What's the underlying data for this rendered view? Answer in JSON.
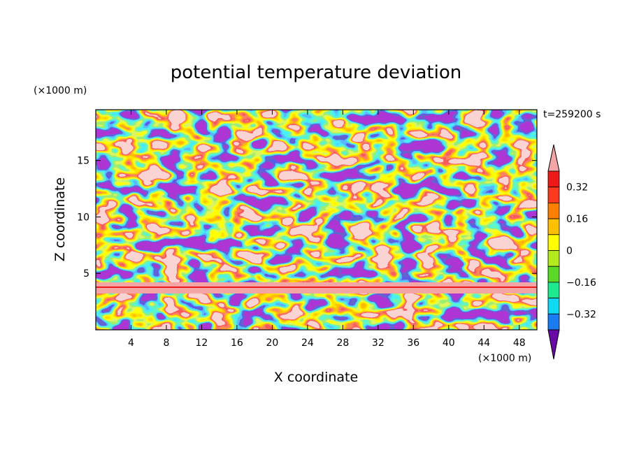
{
  "chart_data": {
    "type": "heatmap",
    "title": "potential temperature deviation",
    "xlabel": "X coordinate",
    "ylabel": "Z coordinate",
    "x_unit": "(×1000 m)",
    "y_unit": "(×1000 m)",
    "time_label": "t=259200 s",
    "xlim": [
      0,
      50
    ],
    "ylim": [
      0,
      19.5
    ],
    "x_ticks": [
      4,
      8,
      12,
      16,
      20,
      24,
      28,
      32,
      36,
      40,
      44,
      48
    ],
    "y_ticks": [
      5,
      10,
      15
    ],
    "colorbar": {
      "levels": [
        -0.4,
        -0.32,
        -0.24,
        -0.16,
        -0.08,
        0,
        0.08,
        0.16,
        0.24,
        0.32,
        0.4
      ],
      "labels": [
        "0.32",
        "0.16",
        "0",
        "−0.16",
        "−0.32"
      ],
      "label_values": [
        0.32,
        0.16,
        0,
        -0.16,
        -0.32
      ],
      "colors": [
        "#6a0aa6",
        "#22229a",
        "#1a1ad0",
        "#1a7cf0",
        "#10d8f0",
        "#1ee890",
        "#5ad828",
        "#b4ea1e",
        "#ffff00",
        "#ffc000",
        "#ff8000",
        "#ff3a1e",
        "#ee1a1a"
      ],
      "over_color": "#f4a6a6",
      "under_color": "#6a0aa6",
      "extend": "both"
    }
  }
}
